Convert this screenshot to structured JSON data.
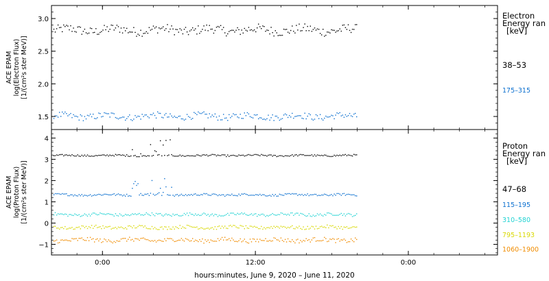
{
  "chart_data": [
    {
      "type": "scatter",
      "ylabel_lines": [
        "ACE EPAM",
        "log(Electron Flux)",
        "[1/(cm²s ster MeV)]"
      ],
      "y_ticks": [
        "1.5",
        "2.0",
        "2.5",
        "3.0"
      ],
      "ylim": [
        1.3,
        3.2
      ],
      "legend_title_lines": [
        "Electron",
        "Energy ran",
        "[keV]"
      ],
      "series": [
        {
          "name": "38–53",
          "color": "#000000",
          "base": 2.83,
          "jitter": 0.07
        },
        {
          "name": "175–315",
          "color": "#0a6fcf",
          "base": 1.51,
          "jitter": 0.05
        }
      ]
    },
    {
      "type": "scatter",
      "ylabel_lines": [
        "ACE EPAM",
        "log(Proton Flux)",
        "[1/(cm²s ster MeV)]"
      ],
      "y_ticks": [
        "−1",
        "0",
        "1",
        "2",
        "3",
        "4"
      ],
      "ylim": [
        -1.5,
        4.4
      ],
      "legend_title_lines": [
        "Proton",
        "Energy ran",
        "[keV]"
      ],
      "series": [
        {
          "name": "47–68",
          "color": "#000000",
          "base": 3.2,
          "jitter": 0.04
        },
        {
          "name": "115–195",
          "color": "#0a6fcf",
          "base": 1.35,
          "jitter": 0.05
        },
        {
          "name": "310–580",
          "color": "#22d3d3",
          "base": 0.42,
          "jitter": 0.07
        },
        {
          "name": "795–1193",
          "color": "#d8d800",
          "base": -0.18,
          "jitter": 0.08
        },
        {
          "name": "1060–1900",
          "color": "#f08c00",
          "base": -0.78,
          "jitter": 0.1
        }
      ]
    }
  ],
  "x_axis": {
    "label": "hours:minutes, June  9, 2020 – June 11, 2020",
    "ticks": [
      "0:00",
      "12:00",
      "0:00"
    ],
    "range_hours": [
      -4.0,
      31.0
    ],
    "tick_hours": [
      0,
      12,
      24
    ],
    "data_end_hour": 20.0
  }
}
